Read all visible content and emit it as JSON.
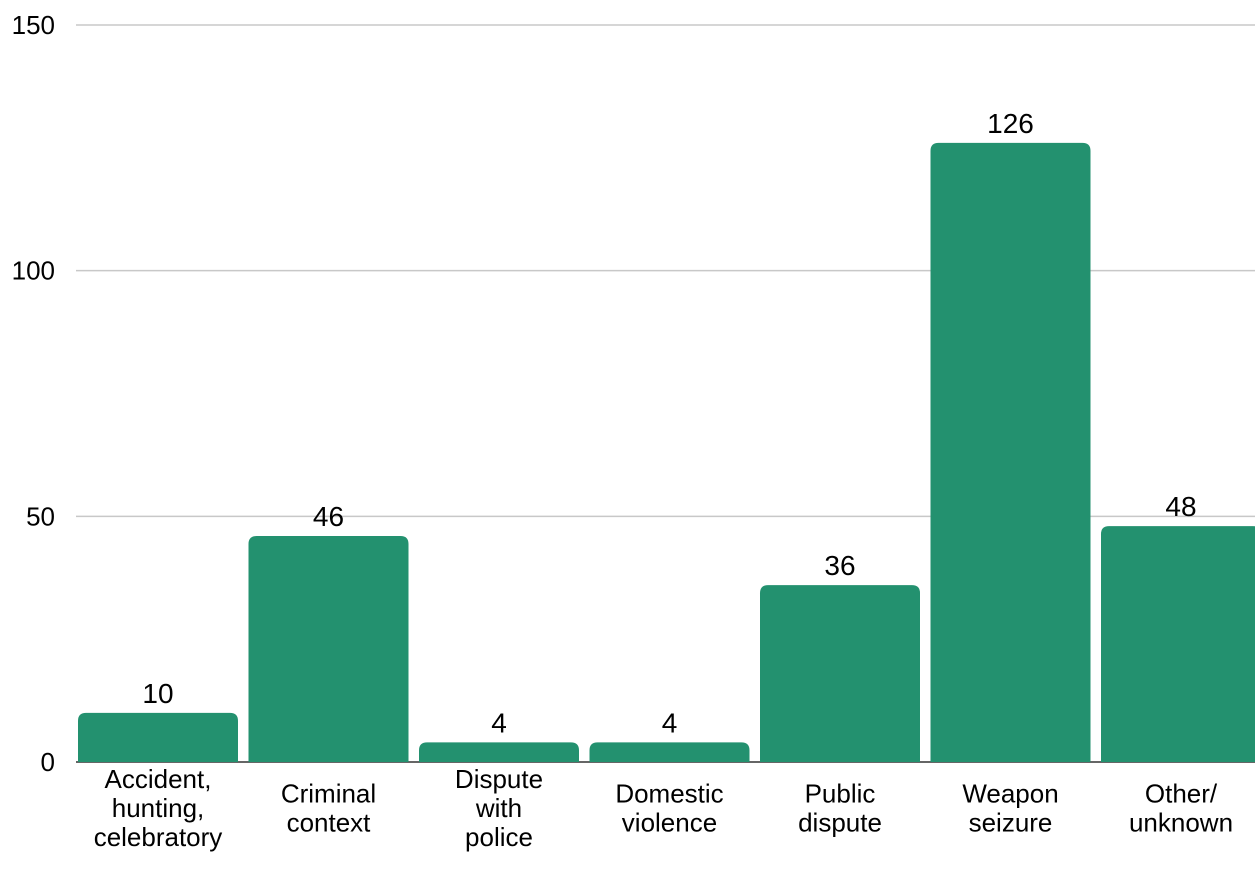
{
  "chart_data": {
    "type": "bar",
    "categories": [
      [
        "Accident,",
        "hunting,",
        "celebratory"
      ],
      [
        "Criminal",
        "context"
      ],
      [
        "Dispute",
        "with",
        "police"
      ],
      [
        "Domestic",
        "violence"
      ],
      [
        "Public",
        "dispute"
      ],
      [
        "Weapon",
        "seizure"
      ],
      [
        "Other/",
        "unknown"
      ]
    ],
    "values": [
      10,
      46,
      4,
      4,
      36,
      126,
      48
    ],
    "data_labels": [
      "10",
      "46",
      "4",
      "4",
      "36",
      "126",
      "48"
    ],
    "ylim": [
      0,
      150
    ],
    "yticks": [
      0,
      50,
      100,
      150
    ],
    "ytick_labels": [
      "0",
      "50",
      "100",
      "150"
    ],
    "grid": true,
    "title": "",
    "xlabel": "",
    "ylabel": "",
    "bar_color": "#23916f",
    "grid_color": "#c8c8c8"
  }
}
